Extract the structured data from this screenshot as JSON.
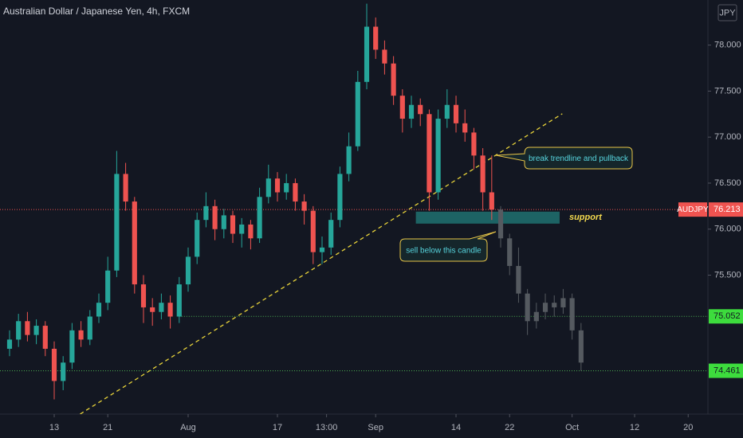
{
  "chart_data": {
    "type": "candlestick",
    "title": "Australian Dollar / Japanese Yen, 4h, FXCM",
    "currency": "JPY",
    "symbol": "AUDJPY",
    "last_price": {
      "value": 76.213,
      "label": "76.213"
    },
    "up_color": "#26a69a",
    "down_color": "#ef5350",
    "projection_color": "#555a60",
    "ylim": [
      73.99,
      78.49
    ],
    "xlim": [
      -6.07,
      73.21
    ],
    "grid": false,
    "yticks": [
      {
        "value": 75.5,
        "label": "75.500"
      },
      {
        "value": 76,
        "label": "76.000"
      },
      {
        "value": 76.5,
        "label": "76.500"
      },
      {
        "value": 77,
        "label": "77.000"
      },
      {
        "value": 77.5,
        "label": "77.500"
      },
      {
        "value": 78,
        "label": "78.000"
      }
    ],
    "xticks": [
      {
        "value": 0,
        "label": "13"
      },
      {
        "value": 6,
        "label": "21"
      },
      {
        "value": 15,
        "label": "Aug"
      },
      {
        "value": 25,
        "label": "17"
      },
      {
        "value": 30.5,
        "label": "13:00"
      },
      {
        "value": 36,
        "label": "Sep"
      },
      {
        "value": 45,
        "label": "14"
      },
      {
        "value": 51,
        "label": "22"
      },
      {
        "value": 58,
        "label": "Oct"
      },
      {
        "value": 65,
        "label": "12"
      },
      {
        "value": 71,
        "label": "20"
      }
    ],
    "candles": {
      "x": [
        -5,
        -4,
        -3,
        -2,
        -1,
        0,
        1,
        2,
        3,
        4,
        5,
        6,
        7,
        8,
        9,
        10,
        11,
        12,
        13,
        14,
        15,
        16,
        17,
        18,
        19,
        20,
        21,
        22,
        23,
        24,
        25,
        26,
        27,
        28,
        29,
        30,
        31,
        32,
        33,
        34,
        35,
        36,
        37,
        38,
        39,
        40,
        41,
        42,
        43,
        44,
        45,
        46,
        47,
        48,
        49
      ],
      "open": [
        74.7,
        74.8,
        75.0,
        74.85,
        74.95,
        74.7,
        74.35,
        74.55,
        74.9,
        74.8,
        75.05,
        75.2,
        75.55,
        76.6,
        76.3,
        75.4,
        75.15,
        75.1,
        75.2,
        75.05,
        75.4,
        75.7,
        76.1,
        76.25,
        76.0,
        76.15,
        75.95,
        76.05,
        75.9,
        76.35,
        76.55,
        76.4,
        76.5,
        76.3,
        76.2,
        75.75,
        75.8,
        76.1,
        76.6,
        76.9,
        77.6,
        78.2,
        77.95,
        77.8,
        77.45,
        77.2,
        77.35,
        77.25,
        76.4,
        77.2,
        77.35,
        77.15,
        77.05,
        76.8,
        76.4
      ],
      "high": [
        74.9,
        75.08,
        75.1,
        75.02,
        75.0,
        74.78,
        74.62,
        74.98,
        75.0,
        75.12,
        75.3,
        75.7,
        76.85,
        76.72,
        76.35,
        75.5,
        75.25,
        75.3,
        75.28,
        75.48,
        75.8,
        76.18,
        76.4,
        76.32,
        76.22,
        76.2,
        76.12,
        76.1,
        76.45,
        76.7,
        76.62,
        76.6,
        76.55,
        76.38,
        76.25,
        75.92,
        76.18,
        76.68,
        77.05,
        77.72,
        78.45,
        78.3,
        78.05,
        77.88,
        77.52,
        77.45,
        77.42,
        77.3,
        77.3,
        77.52,
        77.45,
        77.3,
        77.1,
        76.88,
        76.8
      ],
      "low": [
        74.62,
        74.72,
        74.78,
        74.75,
        74.62,
        74.15,
        74.25,
        74.48,
        74.72,
        74.74,
        74.98,
        75.12,
        75.48,
        76.2,
        75.3,
        74.98,
        74.95,
        75.02,
        74.92,
        74.98,
        75.32,
        75.62,
        76.02,
        75.88,
        75.9,
        75.85,
        75.8,
        75.78,
        75.85,
        76.28,
        76.3,
        76.32,
        76.2,
        76.05,
        75.62,
        75.62,
        75.72,
        76.02,
        76.52,
        76.85,
        77.52,
        77.85,
        77.68,
        77.35,
        77.05,
        77.1,
        77.12,
        76.2,
        76.32,
        77.1,
        77.05,
        76.95,
        76.65,
        76.2,
        76.1
      ],
      "close": [
        74.8,
        75.0,
        74.85,
        74.95,
        74.7,
        74.35,
        74.55,
        74.9,
        74.8,
        75.05,
        75.2,
        75.55,
        76.6,
        76.3,
        75.4,
        75.15,
        75.1,
        75.2,
        75.05,
        75.4,
        75.7,
        76.1,
        76.25,
        76.0,
        76.15,
        75.95,
        76.05,
        75.9,
        76.35,
        76.55,
        76.4,
        76.5,
        76.3,
        76.2,
        75.75,
        75.8,
        76.1,
        76.6,
        76.9,
        77.6,
        78.2,
        77.95,
        77.8,
        77.45,
        77.2,
        77.35,
        77.25,
        76.4,
        77.2,
        77.35,
        77.15,
        77.05,
        76.8,
        76.4,
        76.213
      ]
    },
    "projection": {
      "x": [
        50,
        51,
        52,
        53,
        54,
        55,
        56,
        57,
        58,
        59
      ],
      "open": [
        76.213,
        75.9,
        75.6,
        75.3,
        75.0,
        75.1,
        75.2,
        75.15,
        75.25,
        74.9
      ],
      "high": [
        76.25,
        75.95,
        75.8,
        75.35,
        75.2,
        75.3,
        75.28,
        75.35,
        75.3,
        74.98
      ],
      "low": [
        75.8,
        75.5,
        75.2,
        74.85,
        74.92,
        75.02,
        75.05,
        75.08,
        74.8,
        74.46
      ],
      "close": [
        75.9,
        75.6,
        75.3,
        75.0,
        75.1,
        75.2,
        75.15,
        75.25,
        74.9,
        74.55
      ]
    },
    "levels": [
      {
        "value": 75.052,
        "label": "75.052",
        "x_start": 14
      },
      {
        "value": 74.461,
        "label": "74.461"
      }
    ],
    "level_color": "#4caf50",
    "trendline": {
      "x": [
        2.9,
        56.9
      ],
      "y": [
        73.99,
        77.254
      ],
      "color": "#e8d33a"
    },
    "support_zone": {
      "x": [
        40.5,
        56.6
      ],
      "y": [
        76.06,
        76.19
      ],
      "label": "support",
      "color": "#1f6b6b"
    },
    "annotations": [
      "break trendline and pullback",
      "sell below this candle"
    ]
  }
}
